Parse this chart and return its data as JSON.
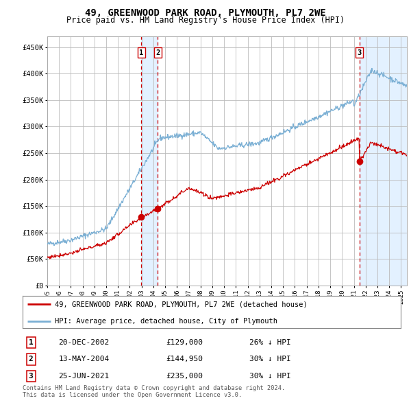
{
  "title": "49, GREENWOOD PARK ROAD, PLYMOUTH, PL7 2WE",
  "subtitle": "Price paid vs. HM Land Registry's House Price Index (HPI)",
  "title_fontsize": 10,
  "subtitle_fontsize": 8.5,
  "legend_line1": "49, GREENWOOD PARK ROAD, PLYMOUTH, PL7 2WE (detached house)",
  "legend_line2": "HPI: Average price, detached house, City of Plymouth",
  "hpi_color": "#7aafd4",
  "property_color": "#cc0000",
  "marker_color": "#cc0000",
  "dashed_color": "#cc0000",
  "shade_color": "#ddeeff",
  "grid_color": "#bbbbbb",
  "background_color": "#ffffff",
  "transactions": [
    {
      "label": "1",
      "date_num": 2002.97,
      "price": 129000,
      "text": "20-DEC-2002",
      "amount": "£129,000",
      "pct": "26% ↓ HPI"
    },
    {
      "label": "2",
      "date_num": 2004.36,
      "price": 144950,
      "text": "13-MAY-2004",
      "amount": "£144,950",
      "pct": "30% ↓ HPI"
    },
    {
      "label": "3",
      "date_num": 2021.48,
      "price": 235000,
      "text": "25-JUN-2021",
      "amount": "£235,000",
      "pct": "30% ↓ HPI"
    }
  ],
  "footer_line1": "Contains HM Land Registry data © Crown copyright and database right 2024.",
  "footer_line2": "This data is licensed under the Open Government Licence v3.0.",
  "ylim": [
    0,
    470000
  ],
  "xlim_start": 1995.0,
  "xlim_end": 2025.5,
  "yticks": [
    0,
    50000,
    100000,
    150000,
    200000,
    250000,
    300000,
    350000,
    400000,
    450000
  ],
  "ytick_labels": [
    "£0",
    "£50K",
    "£100K",
    "£150K",
    "£200K",
    "£250K",
    "£300K",
    "£350K",
    "£400K",
    "£450K"
  ],
  "xticks": [
    1995,
    1996,
    1997,
    1998,
    1999,
    2000,
    2001,
    2002,
    2003,
    2004,
    2005,
    2006,
    2007,
    2008,
    2009,
    2010,
    2011,
    2012,
    2013,
    2014,
    2015,
    2016,
    2017,
    2018,
    2019,
    2020,
    2021,
    2022,
    2023,
    2024,
    2025
  ]
}
